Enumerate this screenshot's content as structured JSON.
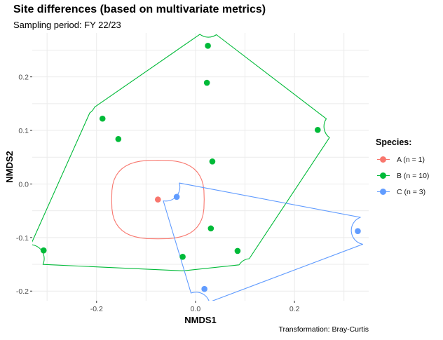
{
  "chart_data": {
    "type": "scatter",
    "title": "Site differences (based on multivariate metrics)",
    "subtitle": "Sampling period: FY 22/23",
    "caption": "Transformation: Bray-Curtis",
    "xlabel": "NMDS1",
    "ylabel": "NMDS2",
    "xlim": [
      -0.33,
      0.35
    ],
    "ylim": [
      -0.218,
      0.282
    ],
    "x_ticks": [
      -0.2,
      0.0,
      0.2
    ],
    "x_tick_labels": [
      "-0.2",
      "0.0",
      "0.2"
    ],
    "y_ticks": [
      -0.2,
      -0.1,
      0.0,
      0.1,
      0.2
    ],
    "y_tick_labels": [
      "-0.2",
      "-0.1",
      "0.0",
      "0.1",
      "0.2"
    ],
    "grid": true,
    "legend": {
      "title": "Species:",
      "placement": "right"
    },
    "series": [
      {
        "name": "A",
        "label": "A (n = 1)",
        "color": "#F8766D",
        "points": [
          {
            "x": -0.076,
            "y": -0.029
          }
        ]
      },
      {
        "name": "B",
        "label": "B (n = 10)",
        "color": "#00BA38",
        "points": [
          {
            "x": 0.025,
            "y": 0.258
          },
          {
            "x": 0.023,
            "y": 0.189
          },
          {
            "x": -0.188,
            "y": 0.122
          },
          {
            "x": -0.156,
            "y": 0.084
          },
          {
            "x": 0.247,
            "y": 0.101
          },
          {
            "x": 0.034,
            "y": 0.042
          },
          {
            "x": -0.307,
            "y": -0.124
          },
          {
            "x": 0.031,
            "y": -0.083
          },
          {
            "x": 0.085,
            "y": -0.125
          },
          {
            "x": -0.026,
            "y": -0.136
          }
        ]
      },
      {
        "name": "C",
        "label": "C (n = 3)",
        "color": "#619CFF",
        "points": [
          {
            "x": -0.038,
            "y": -0.024
          },
          {
            "x": 0.328,
            "y": -0.088
          },
          {
            "x": 0.018,
            "y": -0.196
          }
        ]
      }
    ]
  }
}
